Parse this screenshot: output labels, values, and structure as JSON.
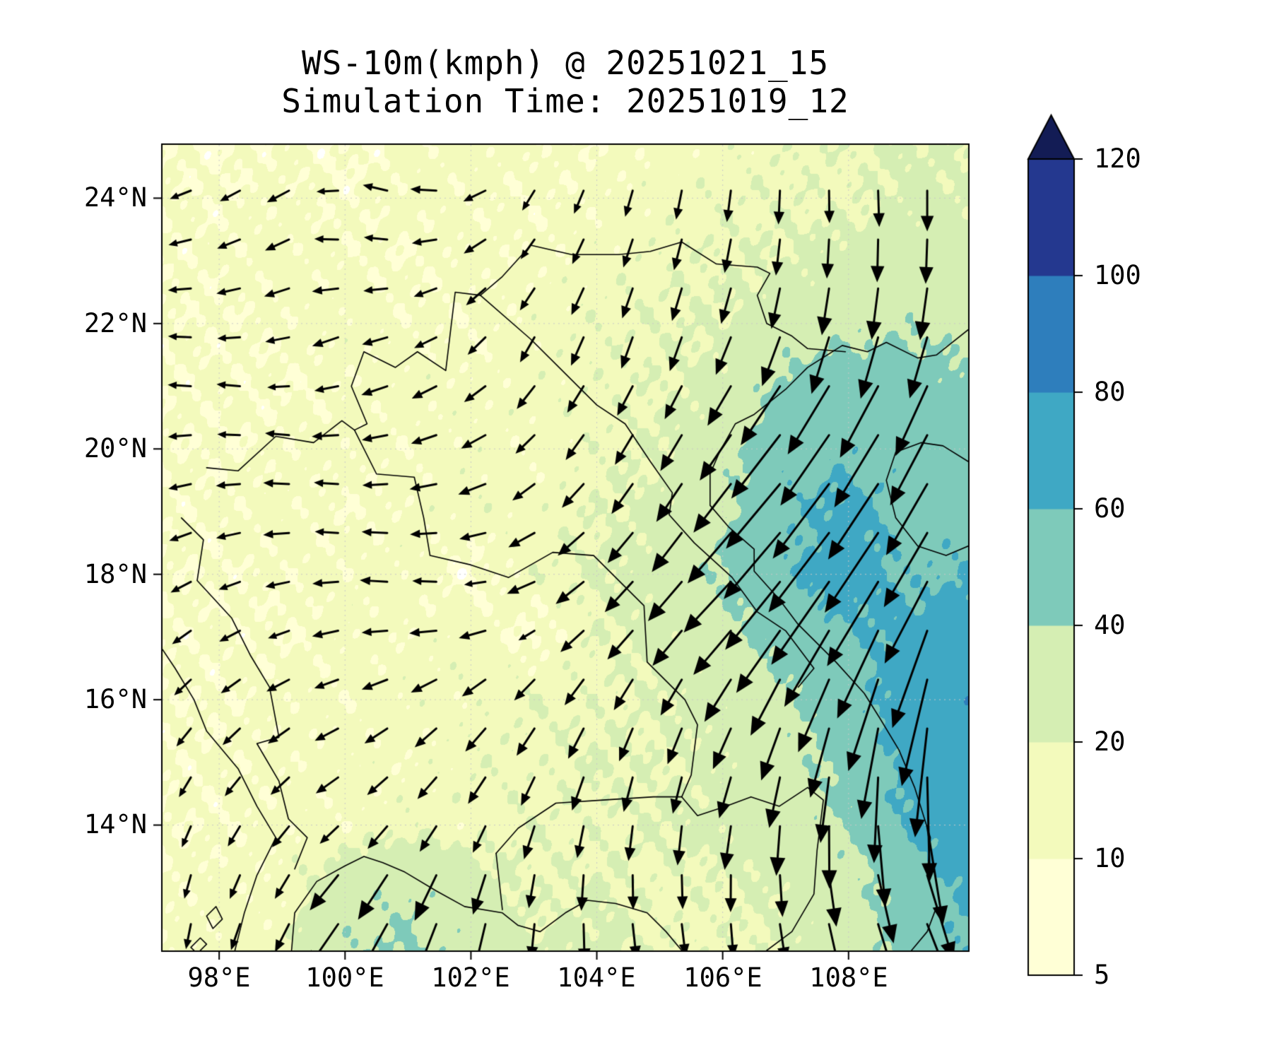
{
  "title": "WS-10m(kmph) @ 20251021_15",
  "subtitle": "Simulation Time: 20251019_12",
  "chart_data": {
    "type": "heatmap",
    "title": "WS-10m(kmph) @ 20251021_15",
    "subtitle": "Simulation Time: 20251019_12",
    "xlabel": "",
    "ylabel": "",
    "units": "kmph",
    "grid_on": true,
    "legend_position": "right-colorbar",
    "extent": {
      "lon_min": 97.1,
      "lon_max": 109.9,
      "lat_min": 12.0,
      "lat_max": 24.85
    },
    "x_ticks": [
      {
        "v": 98,
        "label": "98°E"
      },
      {
        "v": 100,
        "label": "100°E"
      },
      {
        "v": 102,
        "label": "102°E"
      },
      {
        "v": 104,
        "label": "104°E"
      },
      {
        "v": 106,
        "label": "106°E"
      },
      {
        "v": 108,
        "label": "108°E"
      }
    ],
    "y_ticks": [
      {
        "v": 24,
        "label": "24°N"
      },
      {
        "v": 22,
        "label": "22°N"
      },
      {
        "v": 20,
        "label": "20°N"
      },
      {
        "v": 18,
        "label": "18°N"
      },
      {
        "v": 16,
        "label": "16°N"
      },
      {
        "v": 14,
        "label": "14°N"
      }
    ],
    "levels": [
      5,
      10,
      20,
      40,
      60,
      80,
      100,
      120
    ],
    "level_colors": [
      "#ffffd6",
      "#f3fabc",
      "#d5eeb3",
      "#7ecaba",
      "#3fa8c4",
      "#2e7ebc",
      "#24388f"
    ],
    "over_color": "#131c55",
    "under_color": "#ffffff",
    "colorbar_ticks": [
      "120",
      "100",
      "80",
      "60",
      "40",
      "20",
      "10",
      "5"
    ],
    "grid_lon": [
      97,
      98,
      99,
      100,
      101,
      102,
      103,
      104,
      105,
      106,
      107,
      108,
      109,
      110
    ],
    "grid_lat": [
      25,
      24,
      23,
      22,
      21,
      20,
      19,
      18,
      17,
      16,
      15,
      14,
      13,
      12
    ],
    "wind_speed_kmh": [
      [
        10,
        9,
        11,
        8,
        12,
        15,
        13,
        11,
        13,
        15,
        17,
        19,
        22,
        20
      ],
      [
        12,
        10,
        13,
        10,
        14,
        12,
        11,
        13,
        15,
        17,
        19,
        17,
        24,
        22
      ],
      [
        10,
        12,
        14,
        12,
        10,
        14,
        12,
        15,
        17,
        19,
        21,
        26,
        28,
        24
      ],
      [
        12,
        10,
        12,
        15,
        12,
        11,
        15,
        17,
        19,
        21,
        28,
        34,
        38,
        32
      ],
      [
        10,
        12,
        10,
        12,
        15,
        13,
        15,
        17,
        19,
        24,
        46,
        52,
        50,
        42
      ],
      [
        12,
        10,
        12,
        14,
        12,
        15,
        13,
        17,
        21,
        32,
        54,
        56,
        52,
        46
      ],
      [
        10,
        12,
        14,
        10,
        13,
        16,
        15,
        19,
        23,
        37,
        56,
        66,
        54,
        50
      ],
      [
        12,
        10,
        12,
        13,
        15,
        7,
        17,
        21,
        26,
        42,
        58,
        70,
        56,
        62
      ],
      [
        10,
        12,
        10,
        14,
        12,
        17,
        7,
        19,
        23,
        32,
        48,
        58,
        66,
        72
      ],
      [
        12,
        10,
        14,
        12,
        16,
        14,
        19,
        17,
        21,
        26,
        36,
        52,
        72,
        76
      ],
      [
        10,
        12,
        12,
        15,
        12,
        18,
        16,
        21,
        19,
        23,
        32,
        46,
        66,
        74
      ],
      [
        12,
        10,
        14,
        12,
        17,
        14,
        19,
        17,
        21,
        25,
        30,
        42,
        62,
        70
      ],
      [
        10,
        14,
        12,
        32,
        38,
        28,
        18,
        21,
        17,
        19,
        23,
        32,
        52,
        64
      ],
      [
        12,
        14,
        16,
        38,
        42,
        34,
        22,
        24,
        18,
        17,
        21,
        30,
        48,
        60
      ]
    ],
    "wind_dir_toward_deg": [
      [
        200,
        215,
        185,
        175,
        165,
        205,
        225,
        235,
        250,
        262,
        268,
        272,
        268,
        262
      ],
      [
        195,
        205,
        215,
        180,
        160,
        195,
        240,
        252,
        258,
        262,
        268,
        272,
        272,
        266
      ],
      [
        185,
        195,
        205,
        172,
        182,
        212,
        232,
        246,
        252,
        257,
        262,
        266,
        268,
        263
      ],
      [
        172,
        182,
        192,
        202,
        192,
        222,
        242,
        250,
        254,
        250,
        254,
        258,
        257,
        254
      ],
      [
        182,
        172,
        182,
        192,
        202,
        212,
        232,
        240,
        244,
        240,
        236,
        240,
        244,
        250
      ],
      [
        192,
        182,
        172,
        182,
        192,
        202,
        222,
        236,
        240,
        235,
        231,
        236,
        240,
        245
      ],
      [
        202,
        192,
        182,
        172,
        182,
        192,
        212,
        226,
        236,
        231,
        229,
        233,
        238,
        242
      ],
      [
        212,
        202,
        192,
        182,
        172,
        182,
        202,
        222,
        231,
        226,
        231,
        236,
        240,
        245
      ],
      [
        222,
        212,
        202,
        192,
        182,
        192,
        212,
        226,
        231,
        229,
        236,
        242,
        250,
        255
      ],
      [
        232,
        222,
        212,
        202,
        212,
        222,
        232,
        240,
        245,
        241,
        246,
        252,
        258,
        262
      ],
      [
        242,
        232,
        222,
        212,
        222,
        232,
        242,
        250,
        255,
        251,
        256,
        262,
        268,
        272
      ],
      [
        252,
        242,
        232,
        222,
        232,
        242,
        252,
        260,
        265,
        261,
        266,
        272,
        278,
        282
      ],
      [
        262,
        252,
        242,
        232,
        242,
        252,
        262,
        270,
        275,
        271,
        276,
        282,
        288,
        292
      ],
      [
        266,
        256,
        246,
        236,
        246,
        256,
        266,
        276,
        281,
        276,
        281,
        286,
        292,
        296
      ]
    ],
    "outlines": [
      [
        [
          109.9,
          21.9
        ],
        [
          109.4,
          21.5
        ],
        [
          109.1,
          21.45
        ],
        [
          108.6,
          21.7
        ],
        [
          108.3,
          21.55
        ],
        [
          107.9,
          21.65
        ],
        [
          107.35,
          21.3
        ],
        [
          107.0,
          20.95
        ],
        [
          106.75,
          20.75
        ],
        [
          106.5,
          20.55
        ],
        [
          106.2,
          20.4
        ],
        [
          105.95,
          19.95
        ],
        [
          105.8,
          19.6
        ],
        [
          105.8,
          19.1
        ],
        [
          106.1,
          18.75
        ],
        [
          106.5,
          18.4
        ],
        [
          106.5,
          18.05
        ],
        [
          106.9,
          17.6
        ],
        [
          107.2,
          17.2
        ],
        [
          107.8,
          16.6
        ],
        [
          108.25,
          16.1
        ],
        [
          108.5,
          15.7
        ],
        [
          108.8,
          15.2
        ],
        [
          109.05,
          14.6
        ],
        [
          109.3,
          13.8
        ],
        [
          109.25,
          13.2
        ],
        [
          109.4,
          12.7
        ],
        [
          109.25,
          12.3
        ],
        [
          109.0,
          12.0
        ]
      ],
      [
        [
          109.9,
          19.8
        ],
        [
          109.5,
          20.05
        ],
        [
          109.15,
          20.1
        ],
        [
          108.75,
          19.95
        ],
        [
          108.6,
          19.5
        ],
        [
          108.75,
          18.9
        ],
        [
          109.1,
          18.45
        ],
        [
          109.55,
          18.3
        ],
        [
          109.9,
          18.45
        ]
      ],
      [
        [
          99.15,
          12.0
        ],
        [
          99.2,
          12.6
        ],
        [
          99.55,
          13.1
        ],
        [
          100.0,
          13.35
        ],
        [
          100.3,
          13.5
        ],
        [
          100.6,
          13.4
        ],
        [
          100.95,
          13.25
        ],
        [
          101.45,
          12.95
        ],
        [
          101.9,
          12.7
        ],
        [
          102.5,
          12.6
        ],
        [
          102.75,
          12.4
        ],
        [
          103.1,
          12.3
        ],
        [
          103.5,
          12.6
        ],
        [
          103.85,
          12.8
        ],
        [
          104.3,
          12.75
        ],
        [
          104.8,
          12.6
        ],
        [
          105.1,
          12.3
        ],
        [
          105.35,
          12.0
        ]
      ],
      [
        [
          98.25,
          12.0
        ],
        [
          98.4,
          12.6
        ],
        [
          98.6,
          13.2
        ],
        [
          98.9,
          13.8
        ],
        [
          98.6,
          14.3
        ],
        [
          98.3,
          14.9
        ],
        [
          97.8,
          15.5
        ],
        [
          97.6,
          16.0
        ],
        [
          97.3,
          16.5
        ],
        [
          97.1,
          16.8
        ]
      ],
      [
        [
          97.9,
          12.35
        ],
        [
          98.05,
          12.5
        ],
        [
          97.95,
          12.7
        ],
        [
          97.8,
          12.55
        ],
        [
          97.9,
          12.35
        ]
      ],
      [
        [
          97.65,
          11.95
        ],
        [
          97.8,
          12.1
        ],
        [
          97.7,
          12.2
        ],
        [
          97.55,
          12.05
        ],
        [
          97.65,
          11.95
        ]
      ],
      [
        [
          97.4,
          18.9
        ],
        [
          97.75,
          18.55
        ],
        [
          97.65,
          17.9
        ],
        [
          98.2,
          17.3
        ],
        [
          98.5,
          16.7
        ],
        [
          98.8,
          16.2
        ],
        [
          98.95,
          15.4
        ],
        [
          98.6,
          15.3
        ],
        [
          98.95,
          14.7
        ],
        [
          99.1,
          14.1
        ],
        [
          99.4,
          13.8
        ],
        [
          99.2,
          13.3
        ]
      ],
      [
        [
          97.8,
          19.7
        ],
        [
          98.3,
          19.65
        ],
        [
          98.9,
          20.2
        ],
        [
          99.5,
          20.1
        ],
        [
          99.95,
          20.45
        ],
        [
          100.15,
          20.3
        ],
        [
          100.35,
          20.4
        ],
        [
          100.1,
          21.0
        ],
        [
          100.3,
          21.55
        ],
        [
          100.8,
          21.3
        ],
        [
          101.15,
          21.55
        ],
        [
          101.6,
          21.25
        ],
        [
          101.75,
          22.5
        ],
        [
          102.15,
          22.45
        ],
        [
          102.5,
          22.75
        ],
        [
          102.95,
          23.25
        ],
        [
          103.6,
          23.1
        ],
        [
          104.35,
          23.1
        ],
        [
          104.85,
          23.15
        ],
        [
          105.35,
          23.3
        ],
        [
          105.9,
          22.95
        ],
        [
          106.55,
          22.9
        ],
        [
          106.75,
          22.8
        ],
        [
          106.55,
          22.45
        ],
        [
          106.7,
          22.0
        ],
        [
          107.1,
          21.8
        ],
        [
          107.35,
          21.6
        ],
        [
          107.95,
          21.55
        ]
      ],
      [
        [
          100.15,
          20.3
        ],
        [
          100.5,
          19.6
        ],
        [
          101.1,
          19.55
        ],
        [
          101.25,
          18.9
        ],
        [
          101.35,
          18.3
        ],
        [
          102.0,
          18.15
        ],
        [
          102.6,
          17.95
        ],
        [
          103.3,
          18.35
        ],
        [
          103.95,
          18.3
        ],
        [
          104.75,
          17.5
        ],
        [
          104.8,
          16.6
        ],
        [
          105.4,
          16.0
        ],
        [
          105.6,
          15.6
        ],
        [
          105.5,
          14.8
        ],
        [
          105.35,
          14.45
        ]
      ],
      [
        [
          102.15,
          22.45
        ],
        [
          102.95,
          21.75
        ],
        [
          103.4,
          21.3
        ],
        [
          104.0,
          20.7
        ],
        [
          104.45,
          20.4
        ],
        [
          104.85,
          19.8
        ],
        [
          105.2,
          19.3
        ],
        [
          105.15,
          18.95
        ],
        [
          105.55,
          18.5
        ],
        [
          106.15,
          17.95
        ],
        [
          106.55,
          17.4
        ],
        [
          107.0,
          17.1
        ],
        [
          107.45,
          16.5
        ],
        [
          107.2,
          16.2
        ]
      ],
      [
        [
          102.4,
          13.55
        ],
        [
          102.75,
          13.95
        ],
        [
          103.35,
          14.35
        ],
        [
          104.1,
          14.4
        ],
        [
          104.9,
          14.45
        ],
        [
          105.35,
          14.45
        ],
        [
          105.6,
          14.15
        ],
        [
          106.05,
          14.3
        ],
        [
          106.45,
          14.45
        ],
        [
          106.9,
          14.3
        ],
        [
          107.35,
          14.6
        ],
        [
          107.6,
          14.4
        ],
        [
          107.5,
          13.6
        ],
        [
          107.45,
          12.9
        ],
        [
          107.1,
          12.3
        ],
        [
          106.7,
          12.0
        ]
      ],
      [
        [
          102.4,
          13.55
        ],
        [
          102.5,
          12.65
        ]
      ]
    ]
  }
}
